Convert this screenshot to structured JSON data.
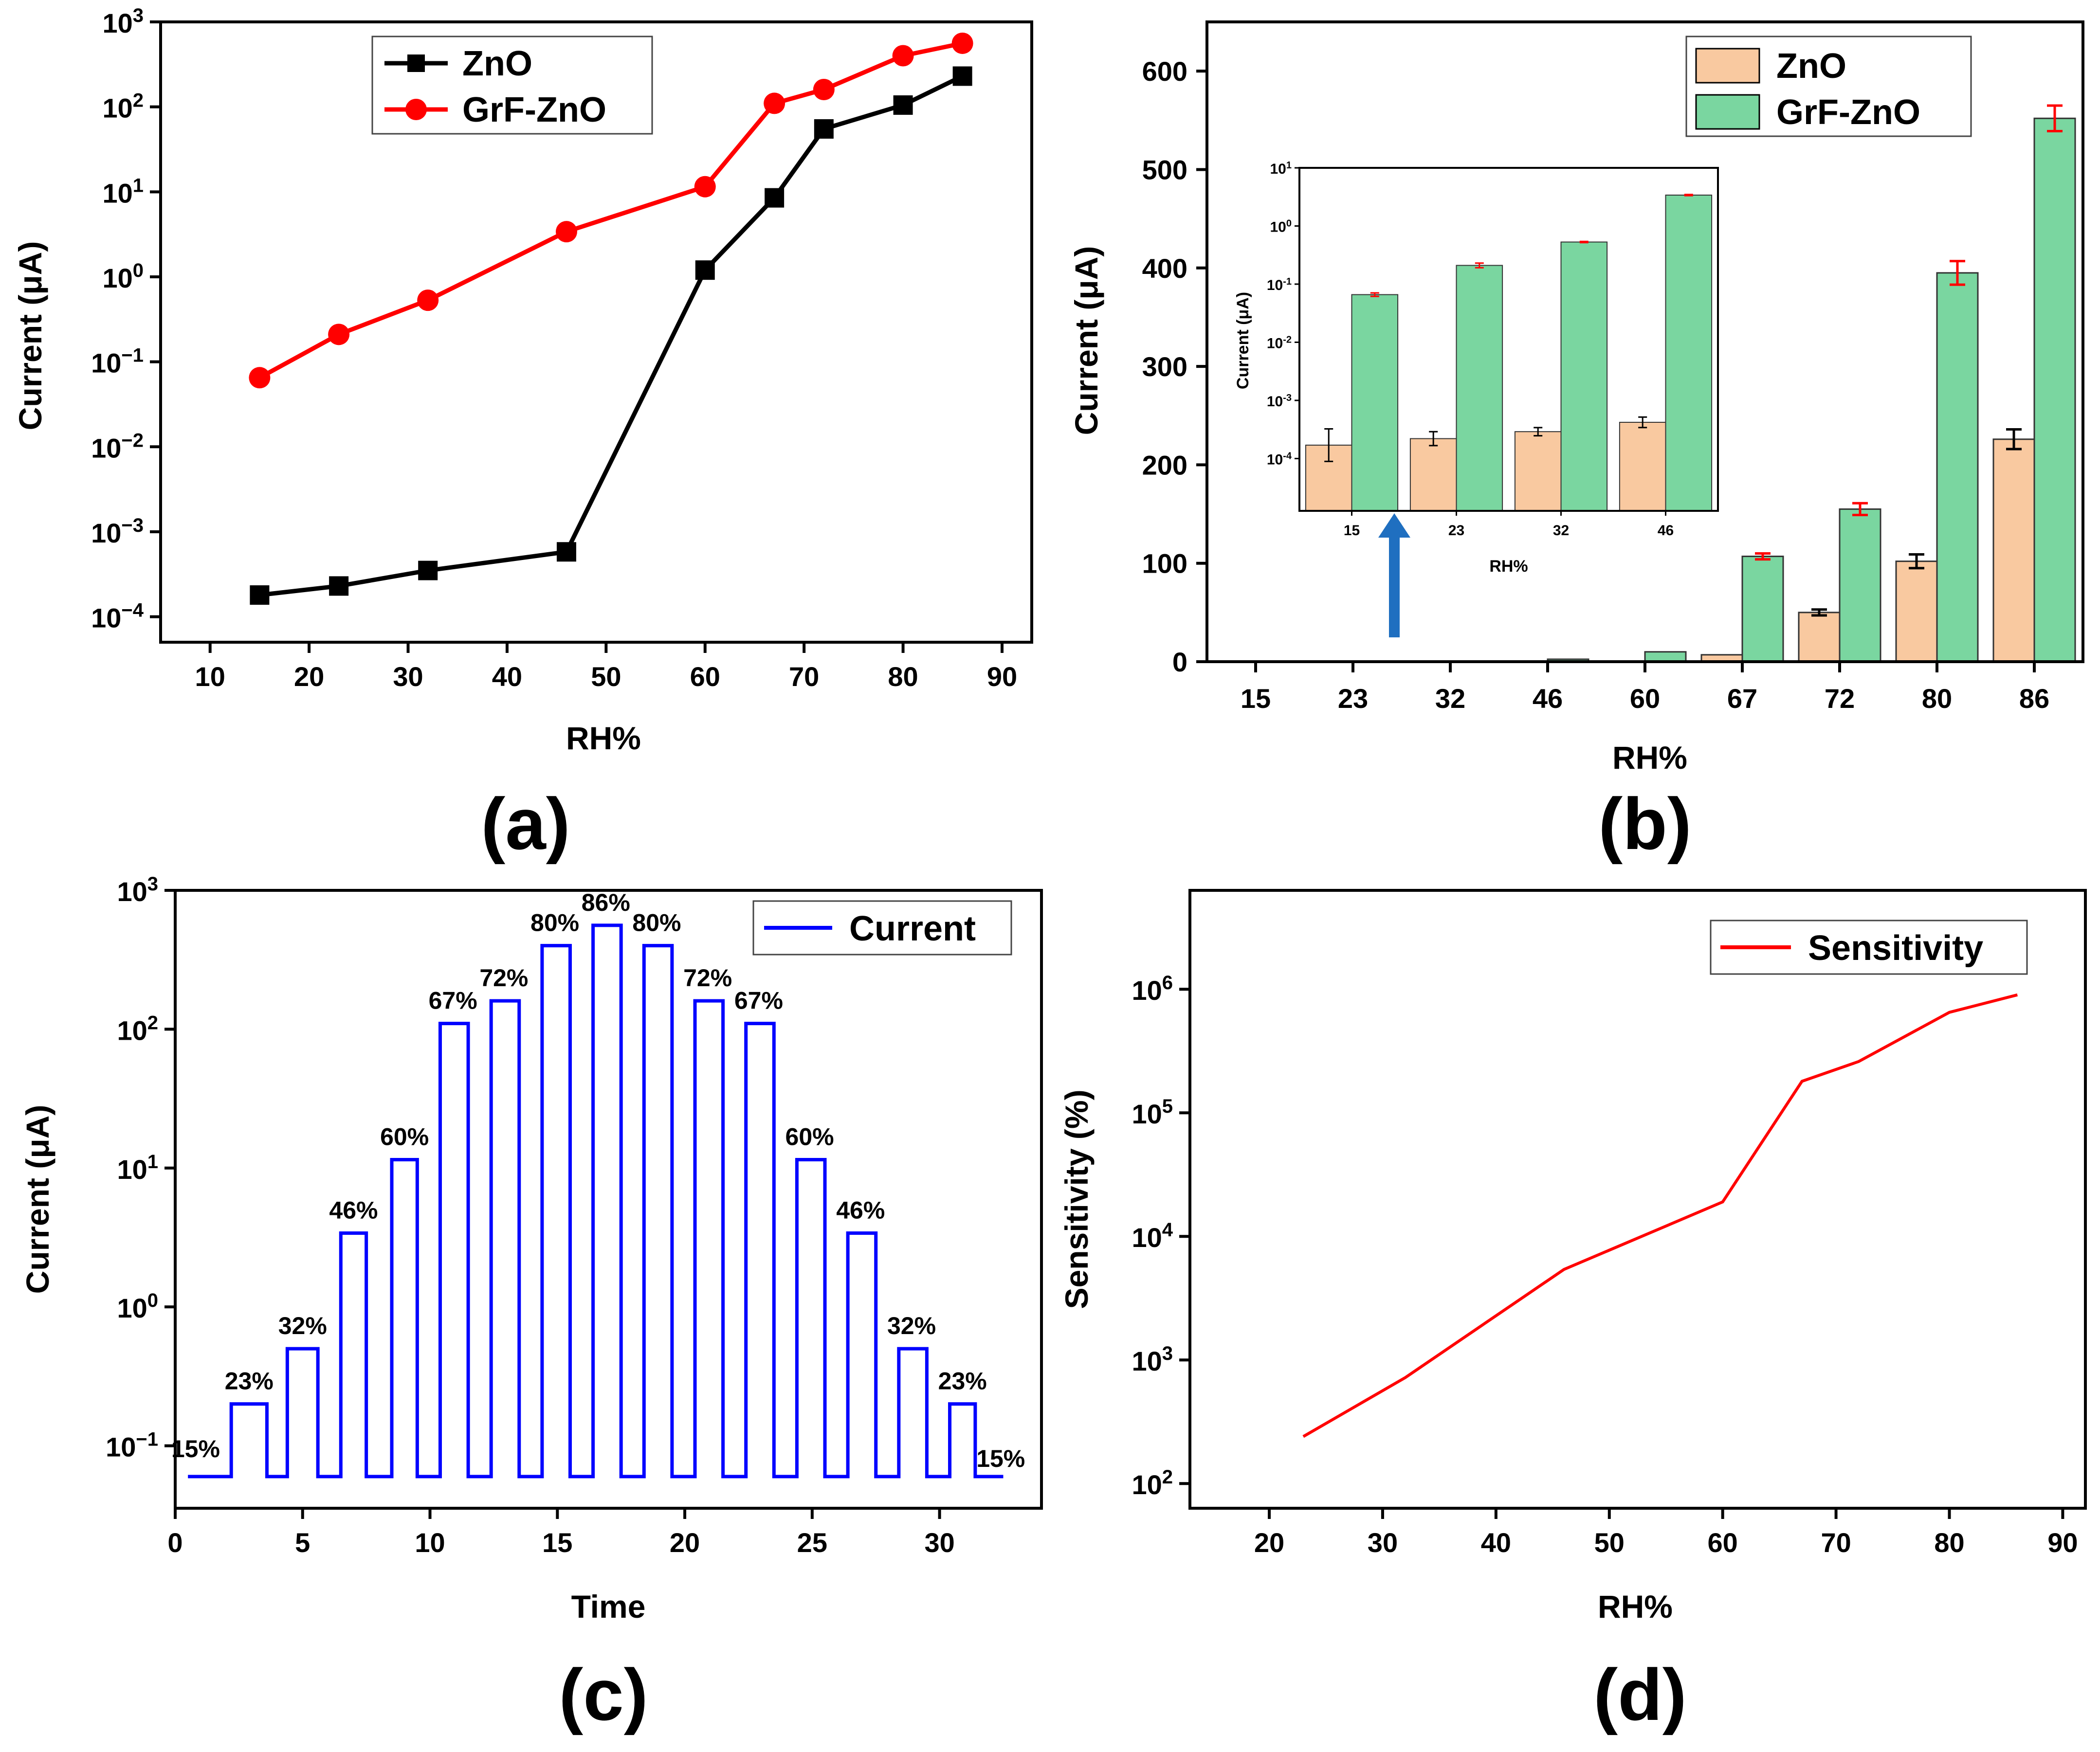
{
  "colors": {
    "zno_line": "#000000",
    "grf_line": "#ff0000",
    "zno_bar": "#f9c9a0",
    "grf_bar": "#7ad6a0",
    "err_zno": "#000000",
    "err_grf": "#ff0000",
    "current_line": "#0000ff",
    "sens_line": "#ff0000",
    "arrow": "#1f6fc0"
  },
  "panels": {
    "a": "(a)",
    "b": "(b)",
    "c": "(c)",
    "d": "(d)"
  },
  "chart_data": [
    {
      "id": "a",
      "type": "line",
      "scale": "log",
      "xlabel": "RH%",
      "ylabel": "Current (μA)",
      "xlim": [
        5,
        93
      ],
      "xticks": [
        10,
        20,
        30,
        40,
        50,
        60,
        70,
        80,
        90
      ],
      "ylim_exp": [
        -4.3,
        3.0
      ],
      "yticks": [
        {
          "base": "10",
          "exp": "3"
        },
        {
          "base": "10",
          "exp": "2"
        },
        {
          "base": "10",
          "exp": "1"
        },
        {
          "base": "10",
          "exp": "0"
        },
        {
          "base": "10",
          "exp": "−1"
        },
        {
          "base": "10",
          "exp": "−2"
        },
        {
          "base": "10",
          "exp": "−3"
        },
        {
          "base": "10",
          "exp": "−4"
        }
      ],
      "ytick_exps": [
        3,
        2,
        1,
        0,
        -1,
        -2,
        -3,
        -4
      ],
      "legend": [
        "ZnO",
        "GrF-ZnO"
      ],
      "x": [
        15,
        23,
        32,
        46,
        60,
        67,
        72,
        80,
        86
      ],
      "series": [
        {
          "name": "ZnO",
          "marker": "square",
          "values": [
            0.00018,
            0.00023,
            0.00035,
            0.00058,
            1.2,
            8.5,
            55,
            105,
            230
          ]
        },
        {
          "name": "GrF-ZnO",
          "marker": "circle",
          "values": [
            0.065,
            0.21,
            0.53,
            3.4,
            11.5,
            110,
            160,
            400,
            560
          ]
        }
      ]
    },
    {
      "id": "b",
      "type": "bar",
      "xlabel": "RH%",
      "ylabel": "Current (μA)",
      "ylim": [
        0,
        650
      ],
      "yticks": [
        0,
        100,
        200,
        300,
        400,
        500,
        600
      ],
      "categories": [
        "15",
        "23",
        "32",
        "46",
        "60",
        "67",
        "72",
        "80",
        "86"
      ],
      "legend": [
        "ZnO",
        "GrF-ZnO"
      ],
      "series": [
        {
          "name": "ZnO",
          "values": [
            0.0002,
            0.0002,
            0.0002,
            0.0003,
            0.7,
            7,
            50,
            102,
            226
          ],
          "errors": [
            0,
            0,
            0,
            0,
            0,
            0,
            3,
            7,
            10
          ]
        },
        {
          "name": "GrF-ZnO",
          "values": [
            0.06,
            0.2,
            0.4,
            2.5,
            10,
            107,
            155,
            395,
            552
          ],
          "errors": [
            0,
            0,
            0,
            0,
            0,
            3,
            6,
            12,
            13
          ]
        }
      ],
      "inset": {
        "type": "bar",
        "scale": "log",
        "xlabel": "RH%",
        "ylabel": "Current (μA)",
        "categories": [
          "15",
          "23",
          "32",
          "46"
        ],
        "yticks": [
          {
            "base": "10",
            "exp": "1"
          },
          {
            "base": "10",
            "exp": "0"
          },
          {
            "base": "10",
            "exp": "-1"
          },
          {
            "base": "10",
            "exp": "-2"
          },
          {
            "base": "10",
            "exp": "-3"
          },
          {
            "base": "10",
            "exp": "-4"
          }
        ],
        "ytick_exps": [
          1,
          0,
          -1,
          -2,
          -3,
          -4
        ],
        "ylim_exp": [
          -4.9,
          1.0
        ],
        "series": [
          {
            "name": "ZnO",
            "values": [
              0.00017,
              0.00022,
              0.00029,
              0.00042
            ],
            "errors_exp": [
              0.28,
              0.12,
              0.07,
              0.09
            ]
          },
          {
            "name": "GrF-ZnO",
            "values": [
              0.066,
              0.21,
              0.53,
              3.4
            ],
            "errors_exp": [
              0.03,
              0.04,
              0.01,
              0.01
            ]
          }
        ]
      }
    },
    {
      "id": "c",
      "type": "line",
      "scale": "log",
      "xlabel": "Time",
      "ylabel": "Current (μA)",
      "xlim": [
        0,
        34
      ],
      "xticks": [
        0,
        5,
        10,
        15,
        20,
        25,
        30
      ],
      "ylim_exp": [
        -1.45,
        3.0
      ],
      "yticks": [
        {
          "base": "10",
          "exp": "3"
        },
        {
          "base": "10",
          "exp": "2"
        },
        {
          "base": "10",
          "exp": "1"
        },
        {
          "base": "10",
          "exp": "0"
        },
        {
          "base": "10",
          "exp": "−1"
        }
      ],
      "ytick_exps": [
        3,
        2,
        1,
        0,
        -1
      ],
      "legend": [
        "Current"
      ],
      "baseline": 0.06,
      "pulses": [
        {
          "start": 2.2,
          "end": 3.6,
          "value": 0.2
        },
        {
          "start": 4.4,
          "end": 5.6,
          "value": 0.5
        },
        {
          "start": 6.5,
          "end": 7.5,
          "value": 3.4
        },
        {
          "start": 8.5,
          "end": 9.5,
          "value": 11.5
        },
        {
          "start": 10.4,
          "end": 11.5,
          "value": 110
        },
        {
          "start": 12.4,
          "end": 13.5,
          "value": 160
        },
        {
          "start": 14.4,
          "end": 15.5,
          "value": 400
        },
        {
          "start": 16.4,
          "end": 17.5,
          "value": 560
        },
        {
          "start": 18.4,
          "end": 19.5,
          "value": 400
        },
        {
          "start": 20.4,
          "end": 21.5,
          "value": 160
        },
        {
          "start": 22.4,
          "end": 23.5,
          "value": 110
        },
        {
          "start": 24.4,
          "end": 25.5,
          "value": 11.5
        },
        {
          "start": 26.4,
          "end": 27.5,
          "value": 3.4
        },
        {
          "start": 28.4,
          "end": 29.5,
          "value": 0.5
        },
        {
          "start": 30.4,
          "end": 31.4,
          "value": 0.2
        }
      ],
      "x_end": 32.5,
      "annotations": [
        "15%",
        "23%",
        "32%",
        "46%",
        "60%",
        "67%",
        "72%",
        "80%",
        "86%",
        "80%",
        "72%",
        "67%",
        "60%",
        "46%",
        "32%",
        "23%",
        "15%"
      ],
      "annotation_points": [
        {
          "x": 0.8,
          "y": 0.06
        },
        {
          "x": 2.9,
          "y": 0.2
        },
        {
          "x": 5.0,
          "y": 0.5
        },
        {
          "x": 7.0,
          "y": 3.4
        },
        {
          "x": 9.0,
          "y": 11.5
        },
        {
          "x": 10.9,
          "y": 110
        },
        {
          "x": 12.9,
          "y": 160
        },
        {
          "x": 14.9,
          "y": 400
        },
        {
          "x": 16.9,
          "y": 560
        },
        {
          "x": 18.9,
          "y": 400
        },
        {
          "x": 20.9,
          "y": 160
        },
        {
          "x": 22.9,
          "y": 110
        },
        {
          "x": 24.9,
          "y": 11.5
        },
        {
          "x": 26.9,
          "y": 3.4
        },
        {
          "x": 28.9,
          "y": 0.5
        },
        {
          "x": 30.9,
          "y": 0.2
        },
        {
          "x": 32.4,
          "y": 0.06
        }
      ]
    },
    {
      "id": "d",
      "type": "line",
      "scale": "log",
      "xlabel": "RH%",
      "ylabel": "Sensitivity (%)",
      "xlim": [
        13,
        92
      ],
      "xticks": [
        20,
        30,
        40,
        50,
        60,
        70,
        80,
        90
      ],
      "ylim_exp": [
        1.8,
        6.8
      ],
      "yticks": [
        {
          "base": "10",
          "exp": "6"
        },
        {
          "base": "10",
          "exp": "5"
        },
        {
          "base": "10",
          "exp": "4"
        },
        {
          "base": "10",
          "exp": "3"
        },
        {
          "base": "10",
          "exp": "2"
        }
      ],
      "ytick_exps": [
        6,
        5,
        4,
        3,
        2
      ],
      "legend": [
        "Sensitivity"
      ],
      "x": [
        23,
        32,
        46,
        60,
        67,
        72,
        80,
        86
      ],
      "values": [
        240,
        720,
        5400,
        19000,
        180000,
        260000,
        650000,
        900000
      ]
    }
  ]
}
